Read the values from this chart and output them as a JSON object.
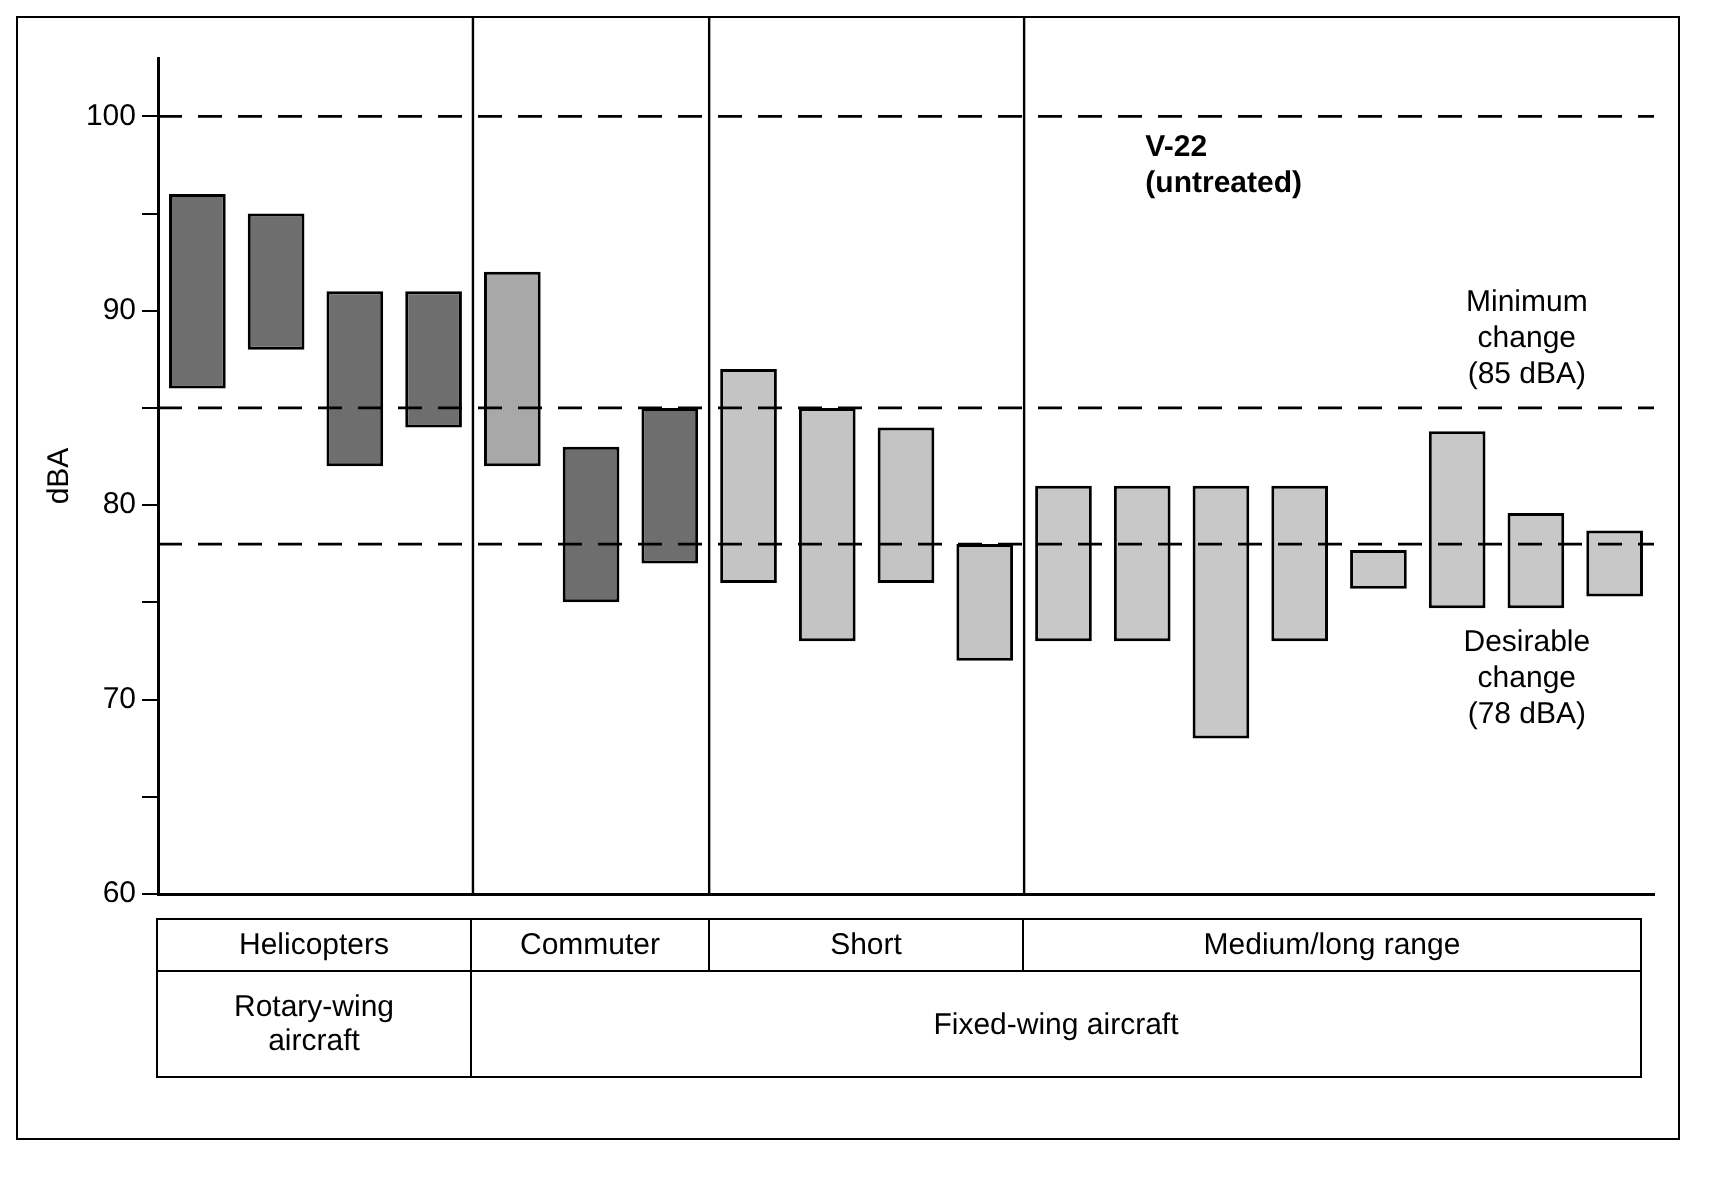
{
  "chart_data": {
    "type": "bar",
    "ylabel": "dBA",
    "categories": [
      null,
      null,
      null,
      null,
      null,
      null,
      null,
      null,
      null,
      null,
      null,
      null,
      null,
      null,
      null,
      null,
      null,
      null,
      null
    ],
    "base": [
      86,
      88,
      82,
      84,
      82,
      75,
      77,
      76,
      73,
      76,
      72,
      73,
      73,
      68,
      73,
      75.7,
      74.7,
      74.7,
      75.3
    ],
    "values": [
      10,
      7,
      9,
      7,
      10,
      8,
      8,
      11,
      12,
      8,
      6,
      8,
      8,
      13,
      8,
      2,
      9.1,
      4.9,
      3.4
    ],
    "colors": [
      "#6e6e6e",
      "#6e6e6e",
      "#6e6e6e",
      "#6e6e6e",
      "#a8a8a8",
      "#6e6e6e",
      "#6e6e6e",
      "#c4c4c4",
      "#c4c4c4",
      "#c4c4c4",
      "#c4c4c4",
      "#c8c8c8",
      "#c8c8c8",
      "#c8c8c8",
      "#c8c8c8",
      "#c8c8c8",
      "#c8c8c8",
      "#c8c8c8",
      "#c8c8c8"
    ],
    "ylim": [
      60,
      103
    ],
    "yticks": [
      60,
      {
        "value": 65,
        "label": null
      },
      70,
      {
        "value": 75,
        "label": null
      },
      80,
      {
        "value": 85,
        "label": null
      },
      90,
      {
        "value": 95,
        "label": null
      },
      100
    ],
    "grid": false,
    "ref_lines": [
      {
        "axis": "y",
        "value": 100,
        "label": "V-22 (untreated)",
        "line_style": "dashed",
        "color": "#000000"
      },
      {
        "axis": "y",
        "value": 85,
        "label": "Minimum change (85 dBA)",
        "line_style": "dashed",
        "color": "#000000"
      },
      {
        "axis": "y",
        "value": 78,
        "label": "Desirable change (78 dBA)",
        "line_style": "dashed",
        "color": "#000000"
      }
    ],
    "annotations": [
      "Helicopters",
      "Commuter",
      "Short",
      "Medium/long range",
      "Rotary-wing aircraft",
      "Fixed-wing aircraft"
    ]
  }
}
